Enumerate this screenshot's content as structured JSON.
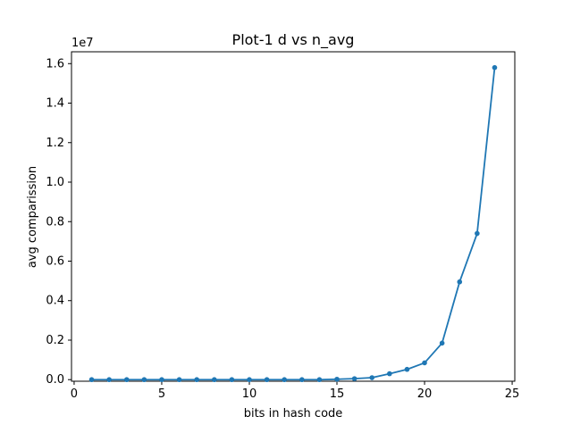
{
  "chart_data": {
    "type": "line",
    "title": "Plot-1 d vs n_avg",
    "xlabel": "bits in hash code",
    "ylabel": "avg comparission",
    "y_offset_label": "1e7",
    "y_scale_multiplier": 10000000,
    "xlim": [
      -0.15,
      25.15
    ],
    "ylim": [
      -0.08,
      16.6
    ],
    "xticks": [
      0,
      5,
      10,
      15,
      20,
      25
    ],
    "xtick_labels": [
      "0",
      "5",
      "10",
      "15",
      "20",
      "25"
    ],
    "yticks": [
      0.0,
      0.2,
      0.4,
      0.6,
      0.8,
      1.0,
      1.2,
      1.4,
      1.6
    ],
    "ytick_labels": [
      "0.0",
      "0.2",
      "0.4",
      "0.6",
      "0.8",
      "1.0",
      "1.2",
      "1.4",
      "1.6"
    ],
    "grid": false,
    "legend": null,
    "series": [
      {
        "color": "#1f77b4",
        "marker": "circle",
        "x": [
          1,
          2,
          3,
          4,
          5,
          6,
          7,
          8,
          9,
          10,
          11,
          12,
          13,
          14,
          15,
          16,
          17,
          18,
          19,
          20,
          21,
          22,
          23,
          24
        ],
        "y": [
          0.0,
          0.0,
          0.0,
          0.0,
          0.0,
          0.0,
          0.0,
          0.0,
          0.0,
          0.0,
          0.0,
          0.0,
          0.0,
          0.0,
          0.02,
          0.05,
          0.1,
          0.3,
          0.52,
          0.85,
          1.85,
          4.95,
          7.4,
          15.8
        ],
        "y_units_note": "values in units of 1e6 (axis shows 1e7 multiplier, tick 1.6 = 16e6)"
      }
    ]
  }
}
